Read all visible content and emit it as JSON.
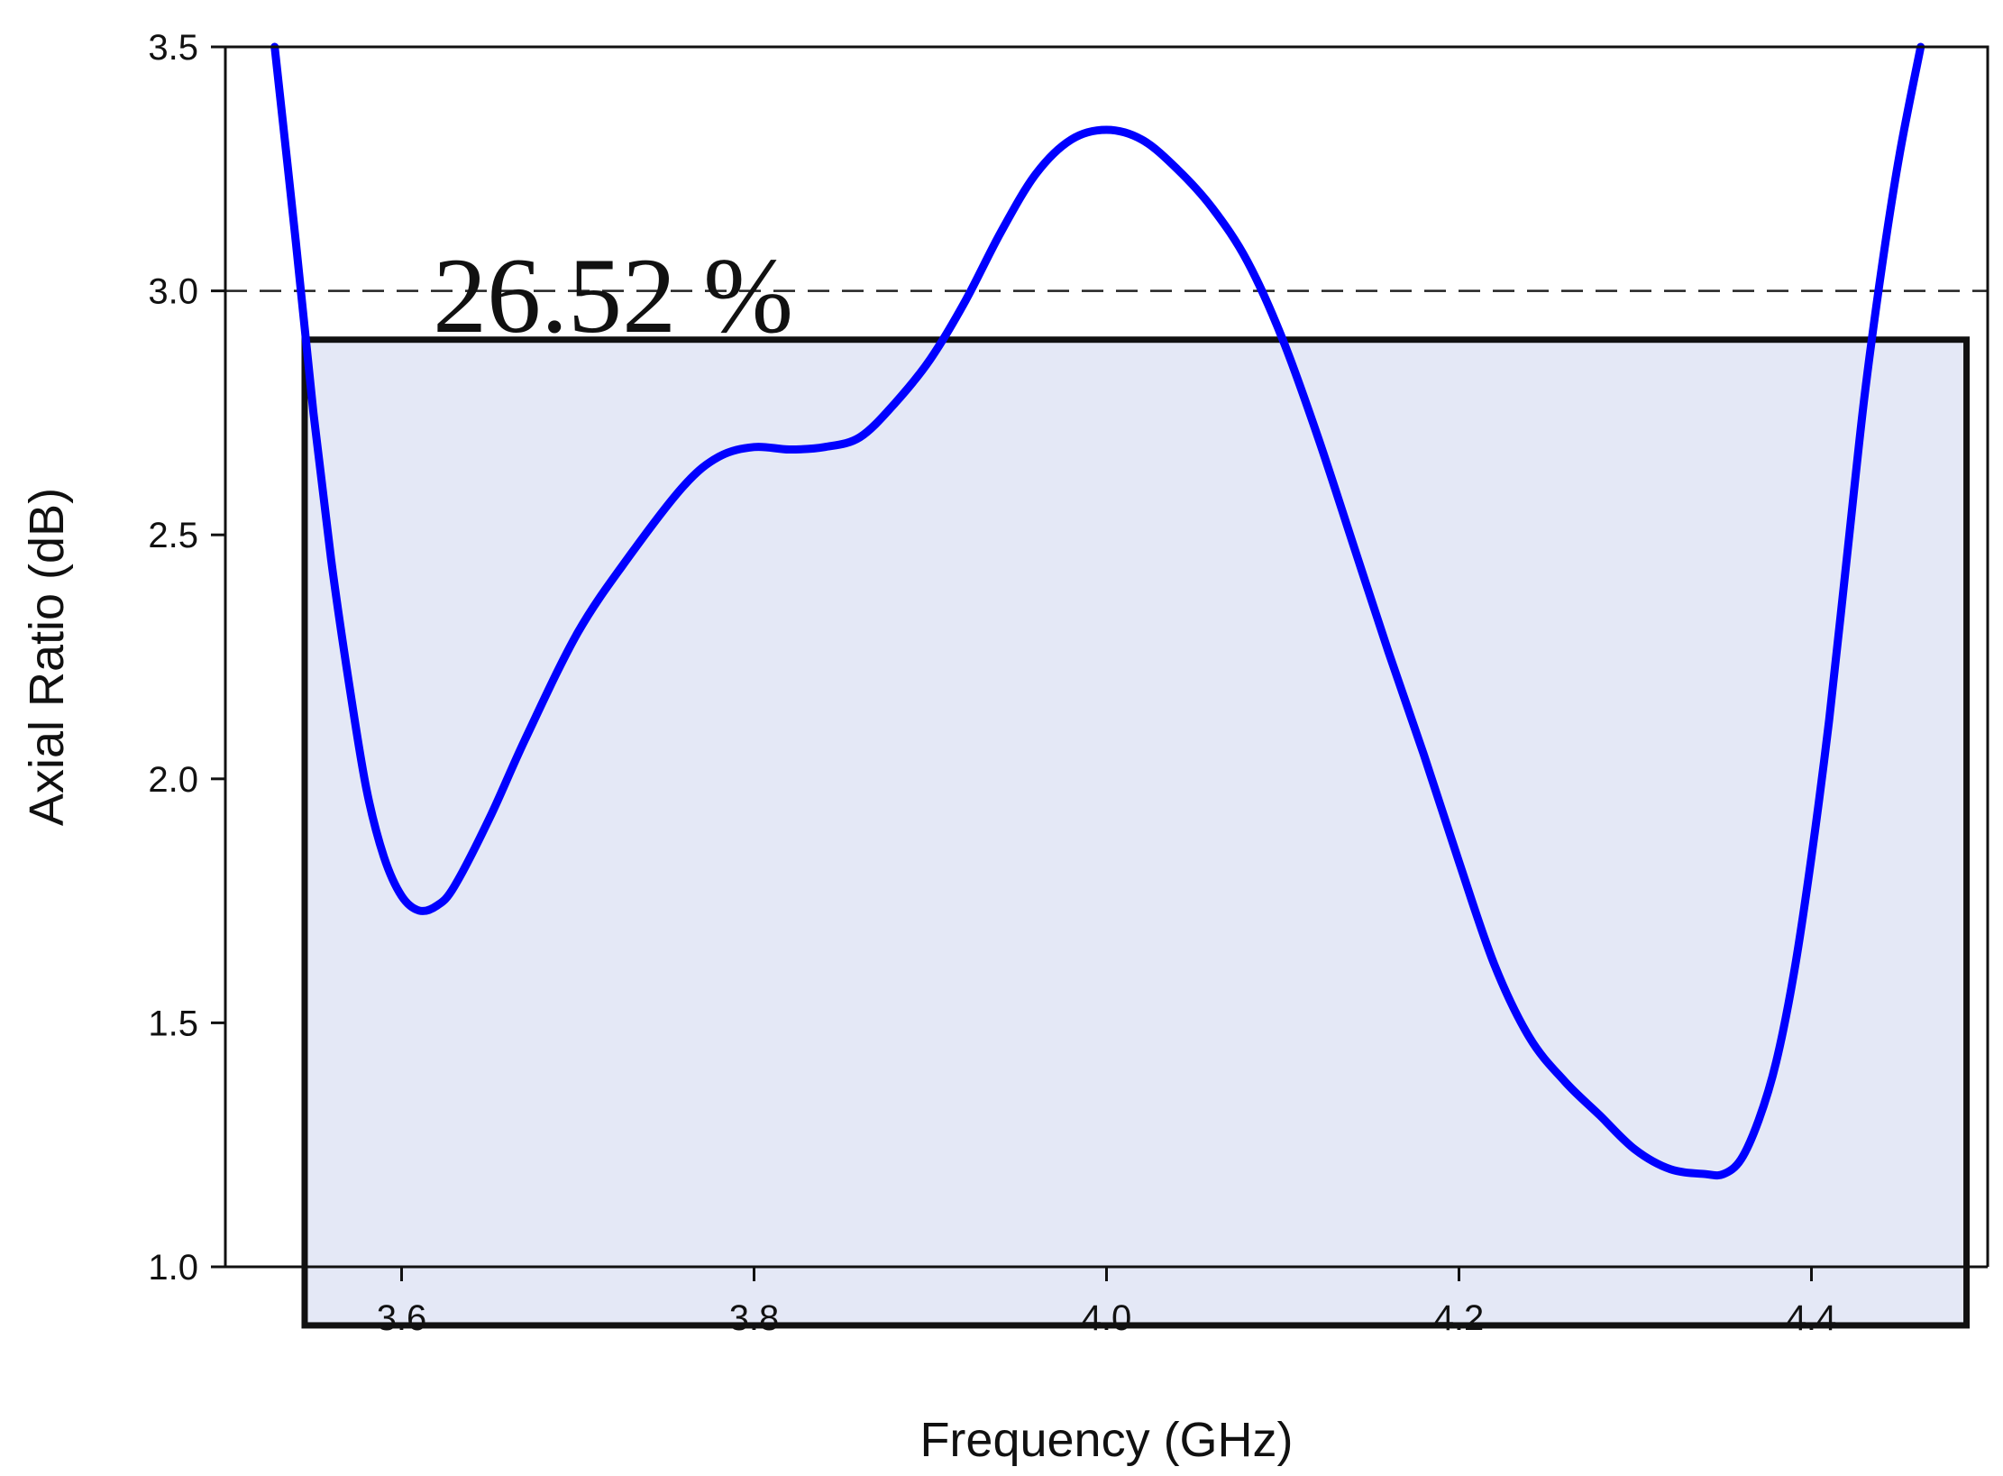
{
  "chart_data": {
    "type": "line",
    "title": "",
    "xlabel": "Frequency (GHz)",
    "ylabel": "Axial Ratio (dB)",
    "xlim": [
      3.5,
      4.5
    ],
    "ylim": [
      1.0,
      3.5
    ],
    "xticks": [
      3.6,
      3.8,
      4.0,
      4.2,
      4.4
    ],
    "xtick_labels": [
      "3.6",
      "3.8",
      "4.0",
      "4.2",
      "4.4"
    ],
    "yticks": [
      1.0,
      1.5,
      2.0,
      2.5,
      3.0,
      3.5
    ],
    "ytick_labels": [
      "1.0",
      "1.5",
      "2.0",
      "2.5",
      "3.0",
      "3.5"
    ],
    "grid": false,
    "series": [
      {
        "name": "",
        "color": "#0000ff",
        "x": [
          3.528,
          3.54,
          3.55,
          3.56,
          3.57,
          3.58,
          3.59,
          3.6,
          3.61,
          3.62,
          3.63,
          3.65,
          3.67,
          3.7,
          3.73,
          3.76,
          3.78,
          3.8,
          3.82,
          3.84,
          3.86,
          3.88,
          3.9,
          3.92,
          3.94,
          3.96,
          3.98,
          4.0,
          4.02,
          4.04,
          4.06,
          4.08,
          4.1,
          4.12,
          4.14,
          4.16,
          4.18,
          4.2,
          4.22,
          4.24,
          4.26,
          4.28,
          4.3,
          4.32,
          4.34,
          4.35,
          4.36,
          4.37,
          4.38,
          4.39,
          4.4,
          4.41,
          4.42,
          4.43,
          4.44,
          4.45,
          4.462
        ],
        "y": [
          3.5,
          3.1,
          2.75,
          2.45,
          2.2,
          1.98,
          1.84,
          1.76,
          1.73,
          1.74,
          1.78,
          1.92,
          2.08,
          2.3,
          2.46,
          2.6,
          2.66,
          2.68,
          2.675,
          2.68,
          2.7,
          2.77,
          2.86,
          2.98,
          3.12,
          3.24,
          3.31,
          3.33,
          3.31,
          3.25,
          3.17,
          3.06,
          2.9,
          2.7,
          2.48,
          2.26,
          2.05,
          1.83,
          1.62,
          1.47,
          1.38,
          1.31,
          1.24,
          1.2,
          1.19,
          1.19,
          1.22,
          1.3,
          1.42,
          1.6,
          1.84,
          2.12,
          2.45,
          2.78,
          3.05,
          3.28,
          3.5
        ]
      }
    ],
    "reference_line": {
      "y": 3.0,
      "style": "dashed"
    },
    "highlight_box": {
      "x_start": 3.545,
      "x_end": 4.488,
      "y_bottom": 0.88,
      "y_top": 2.9,
      "fill": "#e4e8f6",
      "stroke": "#111111"
    },
    "annotations": [
      {
        "text": "26.52 %",
        "x": 3.72,
        "y": 2.99
      }
    ]
  }
}
